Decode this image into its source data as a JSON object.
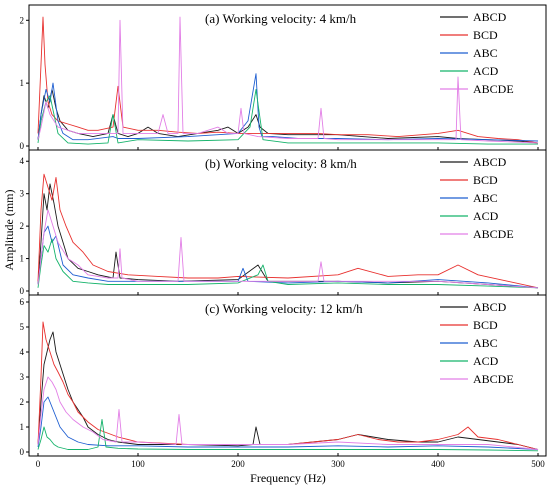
{
  "ylabel": "Amplitude (mm)",
  "xlabel": "Frequency (Hz)",
  "xticks": [
    0,
    100,
    200,
    300,
    400,
    500
  ],
  "colors": {
    "ABCD": "#1a1a1a",
    "BCD": "#e8312f",
    "ABC": "#1f5fd1",
    "ACD": "#15b36b",
    "ABCDE": "#e27fe6"
  },
  "chart_data": [
    {
      "type": "line",
      "title": "(a) Working velocity: 4 km/h",
      "xlim": [
        0,
        500
      ],
      "ylim": [
        0,
        2.1
      ],
      "yticks": [
        0,
        1,
        2
      ],
      "legend": "top-right",
      "series": [
        {
          "name": "ABCD",
          "x": [
            0,
            3,
            6,
            10,
            14,
            18,
            22,
            30,
            40,
            55,
            70,
            75,
            80,
            90,
            100,
            110,
            120,
            140,
            160,
            180,
            190,
            200,
            210,
            218,
            222,
            230,
            250,
            300,
            350,
            400,
            420,
            450,
            480,
            500
          ],
          "y": [
            0.1,
            0.5,
            0.8,
            0.6,
            0.9,
            0.6,
            0.4,
            0.25,
            0.2,
            0.15,
            0.2,
            0.5,
            0.2,
            0.15,
            0.2,
            0.3,
            0.2,
            0.15,
            0.2,
            0.25,
            0.3,
            0.2,
            0.3,
            0.5,
            0.3,
            0.2,
            0.18,
            0.18,
            0.12,
            0.15,
            0.12,
            0.1,
            0.08,
            0.05
          ]
        },
        {
          "name": "BCD",
          "x": [
            0,
            3,
            5,
            7,
            10,
            14,
            20,
            30,
            40,
            50,
            60,
            75,
            80,
            85,
            100,
            120,
            140,
            160,
            180,
            200,
            220,
            250,
            280,
            300,
            330,
            360,
            400,
            420,
            440,
            460,
            480,
            500
          ],
          "y": [
            0.2,
            1.3,
            2.05,
            1.3,
            0.7,
            0.5,
            0.4,
            0.35,
            0.3,
            0.25,
            0.25,
            0.3,
            0.95,
            0.3,
            0.25,
            0.25,
            0.22,
            0.2,
            0.22,
            0.2,
            0.2,
            0.2,
            0.2,
            0.18,
            0.18,
            0.15,
            0.2,
            0.25,
            0.15,
            0.12,
            0.1,
            0.05
          ]
        },
        {
          "name": "ABC",
          "x": [
            0,
            3,
            8,
            12,
            15,
            20,
            25,
            35,
            50,
            75,
            80,
            100,
            150,
            200,
            210,
            218,
            221,
            224,
            235,
            260,
            300,
            350,
            400,
            450,
            500
          ],
          "y": [
            0.1,
            0.5,
            0.9,
            0.7,
            1.0,
            0.4,
            0.2,
            0.1,
            0.1,
            0.15,
            0.12,
            0.12,
            0.15,
            0.2,
            0.4,
            1.15,
            0.3,
            0.15,
            0.15,
            0.12,
            0.12,
            0.1,
            0.12,
            0.1,
            0.08
          ]
        },
        {
          "name": "ACD",
          "x": [
            0,
            3,
            8,
            12,
            16,
            20,
            30,
            50,
            70,
            75,
            80,
            100,
            150,
            200,
            212,
            218,
            225,
            250,
            300,
            350,
            400,
            450,
            500
          ],
          "y": [
            0.05,
            0.4,
            0.7,
            0.8,
            0.5,
            0.2,
            0.05,
            0.03,
            0.05,
            0.5,
            0.05,
            0.1,
            0.08,
            0.1,
            0.3,
            0.9,
            0.1,
            0.05,
            0.05,
            0.05,
            0.05,
            0.03,
            0.03
          ]
        },
        {
          "name": "ABCDE",
          "x": [
            0,
            3,
            8,
            12,
            20,
            40,
            60,
            80,
            82,
            85,
            100,
            120,
            125,
            130,
            140,
            142,
            145,
            160,
            180,
            190,
            200,
            203,
            206,
            220,
            250,
            280,
            283,
            286,
            300,
            350,
            400,
            418,
            420,
            423,
            450,
            500
          ],
          "y": [
            0.1,
            0.3,
            0.7,
            0.5,
            0.3,
            0.2,
            0.2,
            0.2,
            2.0,
            0.2,
            0.2,
            0.2,
            0.5,
            0.2,
            0.2,
            2.05,
            0.2,
            0.2,
            0.3,
            0.2,
            0.2,
            0.6,
            0.2,
            0.15,
            0.12,
            0.12,
            0.6,
            0.12,
            0.1,
            0.1,
            0.1,
            0.1,
            1.1,
            0.1,
            0.08,
            0.05
          ]
        }
      ]
    },
    {
      "type": "line",
      "title": "(b) Working velocity: 8 km/h",
      "xlim": [
        0,
        500
      ],
      "ylim": [
        0,
        4.1
      ],
      "yticks": [
        0,
        1,
        2,
        3,
        4
      ],
      "legend": "top-right",
      "series": [
        {
          "name": "ABCD",
          "x": [
            0,
            3,
            6,
            9,
            12,
            16,
            20,
            25,
            30,
            40,
            50,
            60,
            75,
            78,
            82,
            100,
            140,
            200,
            220,
            230,
            250,
            300,
            350,
            400,
            450,
            500
          ],
          "y": [
            0.2,
            1.5,
            3.0,
            2.5,
            3.3,
            2.7,
            2.0,
            1.5,
            1.0,
            0.7,
            0.6,
            0.5,
            0.4,
            1.2,
            0.4,
            0.35,
            0.3,
            0.35,
            0.8,
            0.3,
            0.3,
            0.3,
            0.25,
            0.3,
            0.2,
            0.1
          ]
        },
        {
          "name": "BCD",
          "x": [
            0,
            3,
            6,
            10,
            14,
            18,
            22,
            28,
            35,
            45,
            55,
            70,
            90,
            120,
            150,
            180,
            200,
            250,
            300,
            320,
            350,
            380,
            400,
            420,
            440,
            470,
            500
          ],
          "y": [
            0.3,
            2.5,
            3.6,
            3.2,
            2.8,
            3.5,
            2.5,
            2.0,
            1.5,
            1.2,
            0.8,
            0.6,
            0.5,
            0.45,
            0.4,
            0.4,
            0.45,
            0.4,
            0.5,
            0.7,
            0.45,
            0.5,
            0.5,
            0.8,
            0.5,
            0.3,
            0.1
          ]
        },
        {
          "name": "ABC",
          "x": [
            0,
            3,
            6,
            10,
            14,
            18,
            25,
            35,
            50,
            70,
            100,
            150,
            200,
            205,
            210,
            250,
            300,
            350,
            400,
            450,
            500
          ],
          "y": [
            0.2,
            1.0,
            1.8,
            2.0,
            1.5,
            1.7,
            0.8,
            0.5,
            0.4,
            0.3,
            0.3,
            0.3,
            0.3,
            0.7,
            0.3,
            0.25,
            0.3,
            0.25,
            0.35,
            0.25,
            0.1
          ]
        },
        {
          "name": "ACD",
          "x": [
            0,
            3,
            6,
            10,
            14,
            18,
            25,
            35,
            50,
            70,
            100,
            150,
            200,
            220,
            225,
            230,
            250,
            300,
            350,
            400,
            450,
            500
          ],
          "y": [
            0.1,
            0.8,
            1.4,
            1.2,
            1.6,
            1.0,
            0.6,
            0.3,
            0.25,
            0.2,
            0.2,
            0.2,
            0.25,
            0.5,
            0.8,
            0.3,
            0.2,
            0.25,
            0.2,
            0.2,
            0.15,
            0.1
          ]
        },
        {
          "name": "ABCDE",
          "x": [
            0,
            3,
            6,
            10,
            15,
            20,
            30,
            40,
            50,
            70,
            80,
            82,
            84,
            100,
            120,
            140,
            143,
            146,
            160,
            200,
            250,
            280,
            283,
            286,
            300,
            350,
            400,
            450,
            500
          ],
          "y": [
            0.2,
            1.0,
            1.8,
            2.5,
            2.0,
            1.5,
            1.0,
            0.8,
            0.5,
            0.4,
            0.4,
            1.3,
            0.4,
            0.3,
            0.3,
            0.3,
            1.65,
            0.3,
            0.3,
            0.3,
            0.3,
            0.3,
            0.9,
            0.3,
            0.3,
            0.3,
            0.3,
            0.2,
            0.1
          ]
        }
      ]
    },
    {
      "type": "line",
      "title": "(c) Working velocity: 12 km/h",
      "xlim": [
        0,
        500
      ],
      "ylim": [
        0,
        6
      ],
      "yticks": [
        0,
        1,
        2,
        3,
        4,
        5,
        6
      ],
      "legend": "top-right",
      "series": [
        {
          "name": "ABCD",
          "x": [
            0,
            3,
            6,
            9,
            12,
            15,
            18,
            22,
            26,
            30,
            35,
            40,
            45,
            50,
            60,
            70,
            80,
            100,
            150,
            200,
            215,
            218,
            222,
            250,
            300,
            320,
            350,
            380,
            400,
            420,
            440,
            460,
            480,
            500
          ],
          "y": [
            0.3,
            2.0,
            3.5,
            4.0,
            4.5,
            4.8,
            4.0,
            3.5,
            3.0,
            2.5,
            2.0,
            1.7,
            1.4,
            1.0,
            0.7,
            0.5,
            0.4,
            0.3,
            0.3,
            0.25,
            0.3,
            1.0,
            0.3,
            0.3,
            0.5,
            0.7,
            0.5,
            0.4,
            0.4,
            0.6,
            0.5,
            0.4,
            0.3,
            0.1
          ]
        },
        {
          "name": "BCD",
          "x": [
            0,
            3,
            5,
            8,
            12,
            16,
            20,
            25,
            30,
            35,
            40,
            50,
            60,
            80,
            100,
            150,
            200,
            250,
            300,
            320,
            340,
            360,
            380,
            400,
            420,
            430,
            440,
            460,
            480,
            500
          ],
          "y": [
            0.3,
            3.0,
            5.2,
            4.5,
            4.0,
            3.5,
            3.2,
            2.8,
            2.3,
            2.0,
            1.6,
            1.2,
            0.9,
            0.6,
            0.4,
            0.3,
            0.3,
            0.3,
            0.5,
            0.7,
            0.5,
            0.4,
            0.4,
            0.5,
            0.7,
            1.0,
            0.6,
            0.5,
            0.3,
            0.1
          ]
        },
        {
          "name": "ABC",
          "x": [
            0,
            3,
            6,
            10,
            14,
            18,
            22,
            30,
            40,
            50,
            70,
            100,
            150,
            200,
            250,
            300,
            350,
            400,
            450,
            500
          ],
          "y": [
            0.2,
            1.0,
            2.0,
            2.2,
            1.8,
            1.4,
            1.0,
            0.6,
            0.4,
            0.3,
            0.25,
            0.25,
            0.2,
            0.2,
            0.2,
            0.25,
            0.2,
            0.25,
            0.2,
            0.1
          ]
        },
        {
          "name": "ACD",
          "x": [
            0,
            3,
            6,
            9,
            12,
            16,
            20,
            30,
            50,
            60,
            64,
            68,
            80,
            100,
            150,
            200,
            250,
            300,
            350,
            400,
            450,
            500
          ],
          "y": [
            0.1,
            0.5,
            1.0,
            0.6,
            0.5,
            0.3,
            0.2,
            0.1,
            0.1,
            0.2,
            1.3,
            0.2,
            0.15,
            0.12,
            0.1,
            0.1,
            0.1,
            0.1,
            0.1,
            0.1,
            0.08,
            0.05
          ]
        },
        {
          "name": "ABCDE",
          "x": [
            0,
            3,
            6,
            10,
            14,
            18,
            22,
            28,
            35,
            45,
            55,
            65,
            78,
            81,
            84,
            100,
            120,
            138,
            141,
            144,
            160,
            200,
            250,
            300,
            350,
            400,
            450,
            500
          ],
          "y": [
            0.3,
            1.5,
            2.5,
            3.0,
            2.8,
            2.5,
            2.0,
            1.6,
            1.3,
            1.0,
            0.8,
            0.5,
            0.4,
            1.7,
            0.4,
            0.4,
            0.35,
            0.3,
            1.5,
            0.3,
            0.3,
            0.3,
            0.3,
            0.4,
            0.3,
            0.3,
            0.3,
            0.1
          ]
        }
      ]
    }
  ]
}
